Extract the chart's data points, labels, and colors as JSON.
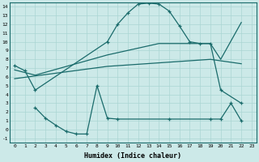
{
  "xlabel": "Humidex (Indice chaleur)",
  "xlim": [
    -0.5,
    23.5
  ],
  "ylim": [
    -1.5,
    14.5
  ],
  "xticks": [
    0,
    1,
    2,
    3,
    4,
    5,
    6,
    7,
    8,
    9,
    10,
    11,
    12,
    13,
    14,
    15,
    16,
    17,
    18,
    19,
    20,
    21,
    22,
    23
  ],
  "yticks": [
    -1,
    0,
    1,
    2,
    3,
    4,
    5,
    6,
    7,
    8,
    9,
    10,
    11,
    12,
    13,
    14
  ],
  "bg_color": "#cce9e8",
  "line_color": "#1a6b6b",
  "grid_color": "#aad5d3",
  "line1_x": [
    0,
    1,
    2,
    9,
    10,
    11,
    12,
    13,
    14,
    15,
    16,
    17,
    18,
    19,
    20,
    22
  ],
  "line1_y": [
    7.3,
    6.7,
    4.5,
    10.0,
    12.0,
    13.3,
    14.3,
    14.4,
    14.3,
    13.5,
    11.8,
    10.0,
    9.8,
    9.8,
    4.5,
    3.0
  ],
  "line2_x": [
    0,
    2,
    9,
    14,
    19,
    20,
    22
  ],
  "line2_y": [
    6.8,
    6.2,
    8.5,
    9.8,
    9.8,
    8.0,
    12.2
  ],
  "line3_x": [
    0,
    9,
    19,
    22
  ],
  "line3_y": [
    5.8,
    7.2,
    8.0,
    7.5
  ],
  "line4_x": [
    2,
    3,
    4,
    5,
    6,
    7,
    8,
    9,
    10,
    15,
    19,
    20,
    21,
    22
  ],
  "line4_y": [
    2.5,
    1.3,
    0.5,
    -0.2,
    -0.5,
    -0.5,
    5.0,
    1.3,
    1.2,
    1.2,
    1.2,
    1.2,
    3.0,
    1.0
  ]
}
